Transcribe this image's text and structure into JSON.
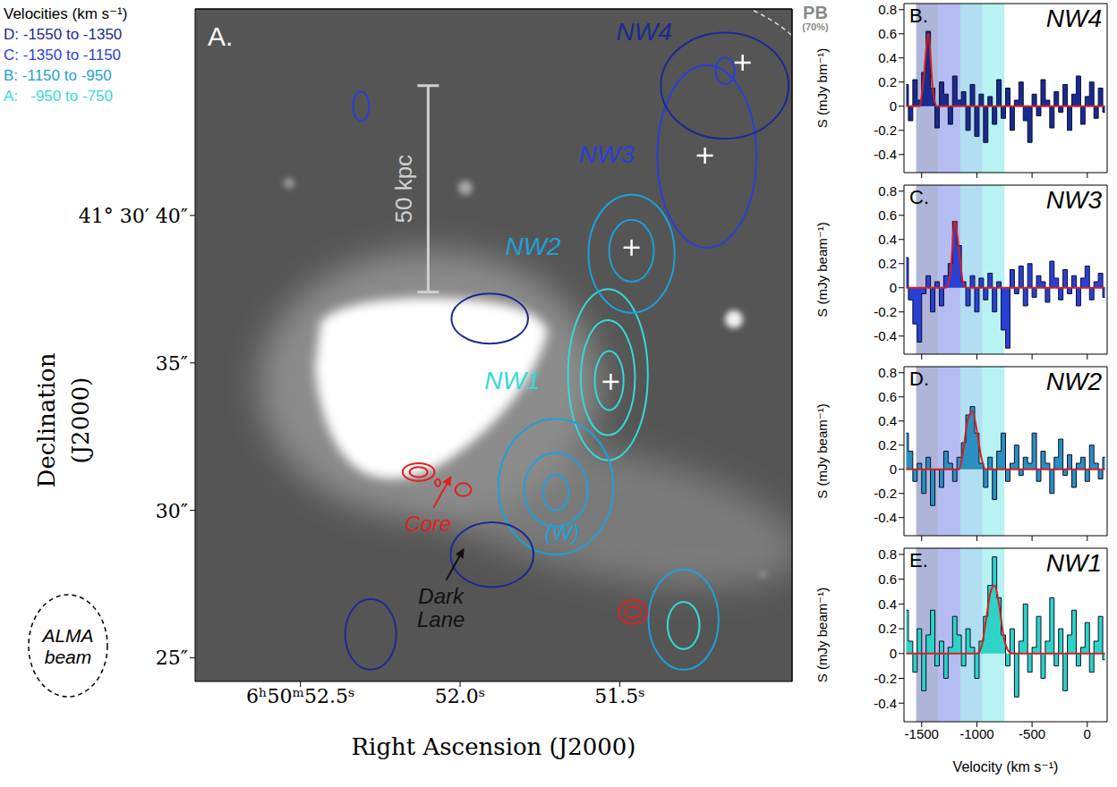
{
  "chart_data": [
    {
      "type": "scatter",
      "panel": "A.",
      "xlabel": "Right Ascension (J2000)",
      "ylabel": "Declination (J2000)",
      "xlim": [
        52.83,
        50.96
      ],
      "ylim": [
        24.2,
        47.0
      ],
      "xticks": [
        {
          "value": 52.5,
          "label": "6ʰ50ᵐ52.5ˢ"
        },
        {
          "value": 52.0,
          "label": "52.0ˢ"
        },
        {
          "value": 51.5,
          "label": "51.5ˢ"
        }
      ],
      "yticks": [
        {
          "value": 25,
          "label": "25″"
        },
        {
          "value": 30,
          "label": "30″"
        },
        {
          "value": 35,
          "label": "35″"
        },
        {
          "value": 40,
          "label": "41° 30′ 40″"
        }
      ],
      "legend_title": "Velocities (km s⁻¹)",
      "legend": "upper left",
      "channels": [
        {
          "name": "D",
          "label": "D: -1550 to -1350",
          "range": [
            -1550,
            -1350
          ],
          "color": "#1b2a8f"
        },
        {
          "name": "C",
          "label": "C: -1350 to -1150",
          "range": [
            -1350,
            -1150
          ],
          "color": "#2a3fd6"
        },
        {
          "name": "B",
          "label": "B: -1150 to -950",
          "range": [
            -1150,
            -950
          ],
          "color": "#1fa0d8"
        },
        {
          "name": "A",
          "label": "A:   -950 to -750",
          "range": [
            -950,
            -750
          ],
          "color": "#35d9d9"
        }
      ],
      "marker": "cross",
      "sources": [
        {
          "name": "NW1",
          "x": 51.528,
          "y": 34.36,
          "channel": "A"
        },
        {
          "name": "NW2",
          "x": 51.463,
          "y": 38.91,
          "channel": "B"
        },
        {
          "name": "NW3",
          "x": 51.233,
          "y": 42.03,
          "channel": "C"
        },
        {
          "name": "NW4",
          "x": 51.115,
          "y": 45.18,
          "channel": "D"
        }
      ],
      "contours": [
        {
          "x": 51.537,
          "y": 34.6,
          "rx": 0.125,
          "ry": 2.9,
          "color": "#35d9d9"
        },
        {
          "x": 51.537,
          "y": 34.5,
          "rx": 0.085,
          "ry": 1.95,
          "color": "#35d9d9"
        },
        {
          "x": 51.533,
          "y": 34.4,
          "rx": 0.045,
          "ry": 1.0,
          "color": "#35d9d9"
        },
        {
          "x": 51.7,
          "y": 30.8,
          "rx": 0.18,
          "ry": 2.3,
          "color": "#1fa0d8"
        },
        {
          "x": 51.7,
          "y": 30.7,
          "rx": 0.1,
          "ry": 1.25,
          "color": "#1fa0d8"
        },
        {
          "x": 51.7,
          "y": 30.6,
          "rx": 0.04,
          "ry": 0.6,
          "color": "#1fa0d8"
        },
        {
          "x": 51.463,
          "y": 38.7,
          "rx": 0.135,
          "ry": 2.0,
          "color": "#1fa0d8"
        },
        {
          "x": 51.463,
          "y": 38.8,
          "rx": 0.07,
          "ry": 1.05,
          "color": "#1fa0d8"
        },
        {
          "x": 51.3,
          "y": 26.3,
          "rx": 0.11,
          "ry": 1.7,
          "color": "#1fa0d8"
        },
        {
          "x": 51.3,
          "y": 26.1,
          "rx": 0.05,
          "ry": 0.8,
          "color": "#35d9d9"
        },
        {
          "x": 51.227,
          "y": 42.0,
          "rx": 0.155,
          "ry": 3.1,
          "color": "#2a3fd6"
        },
        {
          "x": 51.17,
          "y": 44.9,
          "rx": 0.03,
          "ry": 0.45,
          "color": "#2a3fd6"
        },
        {
          "x": 52.31,
          "y": 43.7,
          "rx": 0.025,
          "ry": 0.5,
          "color": "#2a3fd6"
        },
        {
          "x": 51.171,
          "y": 44.4,
          "rx": 0.2,
          "ry": 1.8,
          "color": "#1b2a8f"
        },
        {
          "x": 51.907,
          "y": 36.5,
          "rx": 0.12,
          "ry": 0.85,
          "color": "#1b2a8f"
        },
        {
          "x": 51.9,
          "y": 28.5,
          "rx": 0.13,
          "ry": 1.1,
          "color": "#1b2a8f"
        },
        {
          "x": 52.28,
          "y": 25.8,
          "rx": 0.08,
          "ry": 1.2,
          "color": "#1b2a8f"
        },
        {
          "x": 52.13,
          "y": 31.3,
          "rx": 0.05,
          "ry": 0.3,
          "color": "#e02020"
        },
        {
          "x": 52.13,
          "y": 31.3,
          "rx": 0.028,
          "ry": 0.17,
          "color": "#e02020"
        },
        {
          "x": 51.99,
          "y": 30.7,
          "rx": 0.025,
          "ry": 0.22,
          "color": "#e02020"
        },
        {
          "x": 52.07,
          "y": 30.94,
          "rx": 0.008,
          "ry": 0.12,
          "color": "#e02020"
        },
        {
          "x": 51.458,
          "y": 26.55,
          "rx": 0.045,
          "ry": 0.4,
          "color": "#e02020"
        },
        {
          "x": 51.458,
          "y": 26.55,
          "rx": 0.025,
          "ry": 0.2,
          "color": "#e02020"
        }
      ],
      "annotations": [
        {
          "text": "(W)",
          "x": 51.68,
          "y": 29.0,
          "color": "#1fa0d8"
        },
        {
          "text": "Core",
          "x": 52.1,
          "y": 29.3,
          "color": "#e02020",
          "marker": "arrow"
        },
        {
          "text": "Dark Lane",
          "x": 52.06,
          "y": 26.85,
          "color": "#111111",
          "marker": "arrow"
        }
      ],
      "scale_bar": {
        "label": "50 kpc",
        "x": 52.1,
        "y": [
          37.4,
          44.4
        ]
      },
      "beam_label": "ALMA beam",
      "pb_label": [
        "PB",
        "(70%)"
      ]
    },
    {
      "type": "line",
      "panel": "B.",
      "title": "NW4",
      "ylabel": "S (mJy bm⁻¹)",
      "tick_labels": "y",
      "xlim": [
        -1660,
        180
      ],
      "ylim": [
        -0.55,
        0.85
      ],
      "xticks": [
        -1500,
        -1000,
        -500,
        0
      ],
      "yticks": [
        -0.4,
        -0.2,
        0,
        0.2,
        0.4,
        0.6,
        0.8
      ],
      "x": [
        -1640,
        -1600,
        -1560,
        -1520,
        -1480,
        -1440,
        -1400,
        -1360,
        -1320,
        -1280,
        -1240,
        -1200,
        -1160,
        -1120,
        -1080,
        -1040,
        -1000,
        -960,
        -920,
        -880,
        -840,
        -800,
        -760,
        -720,
        -680,
        -640,
        -600,
        -560,
        -520,
        -480,
        -440,
        -400,
        -360,
        -320,
        -280,
        -240,
        -200,
        -160,
        -120,
        -80,
        -40,
        0,
        40,
        80,
        120,
        160
      ],
      "series": [
        {
          "type": "step",
          "color": "#1b2a8f",
          "values": [
            0.18,
            -0.12,
            0.22,
            0.05,
            0.28,
            0.62,
            0.15,
            -0.18,
            0.2,
            0.1,
            -0.15,
            0.25,
            0.05,
            0.12,
            -0.2,
            0.18,
            -0.25,
            0.1,
            -0.3,
            0.08,
            -0.15,
            0.22,
            -0.1,
            0.15,
            -0.2,
            0.05,
            0.2,
            -0.12,
            -0.3,
            0.1,
            -0.08,
            0.22,
            0.05,
            -0.18,
            0.12,
            -0.05,
            0.18,
            -0.2,
            0.1,
            0.25,
            -0.15,
            0.08,
            0.2,
            -0.1,
            0.15,
            -0.05
          ]
        },
        {
          "type": "line",
          "color": "#d42020",
          "values": [
            0,
            0,
            0,
            0,
            0.25,
            0.6,
            0.15,
            0,
            0,
            0,
            0,
            0,
            0,
            0,
            0,
            0,
            0,
            0,
            0,
            0,
            0,
            0,
            0,
            0,
            0,
            0,
            0,
            0,
            0,
            0,
            0,
            0,
            0,
            0,
            0,
            0,
            0,
            0,
            0,
            0,
            0,
            0,
            0,
            0,
            0,
            0
          ]
        }
      ]
    },
    {
      "type": "line",
      "panel": "C.",
      "title": "NW3",
      "ylabel": "S (mJy beam⁻¹)",
      "tick_labels": "y",
      "xlim": [
        -1660,
        180
      ],
      "ylim": [
        -0.55,
        0.85
      ],
      "xticks": [
        -1500,
        -1000,
        -500,
        0
      ],
      "yticks": [
        -0.4,
        -0.2,
        0,
        0.2,
        0.4,
        0.6,
        0.8
      ],
      "x": [
        -1640,
        -1600,
        -1560,
        -1520,
        -1480,
        -1440,
        -1400,
        -1360,
        -1320,
        -1280,
        -1240,
        -1200,
        -1160,
        -1120,
        -1080,
        -1040,
        -1000,
        -960,
        -920,
        -880,
        -840,
        -800,
        -760,
        -720,
        -680,
        -640,
        -600,
        -560,
        -520,
        -480,
        -440,
        -400,
        -360,
        -320,
        -280,
        -240,
        -200,
        -160,
        -120,
        -80,
        -40,
        0,
        40,
        80,
        120,
        160
      ],
      "series": [
        {
          "type": "step",
          "color": "#2a3fd6",
          "values": [
            0.25,
            -0.1,
            -0.3,
            -0.45,
            -0.05,
            0.1,
            -0.2,
            0.05,
            -0.15,
            0.1,
            0.2,
            0.55,
            0.35,
            0.05,
            -0.15,
            0.1,
            -0.2,
            0.08,
            -0.1,
            0.12,
            -0.2,
            0.05,
            -0.35,
            -0.5,
            0.15,
            -0.05,
            0.18,
            -0.15,
            0.2,
            -0.08,
            0.1,
            0.05,
            -0.12,
            0.22,
            0.08,
            -0.1,
            0.15,
            -0.05,
            0.1,
            -0.15,
            0.08,
            0.18,
            -0.1,
            0.05,
            0.12,
            -0.08
          ]
        },
        {
          "type": "line",
          "color": "#d42020",
          "values": [
            0,
            0,
            0,
            0,
            0,
            0,
            0,
            0,
            0,
            0,
            0.12,
            0.55,
            0.3,
            0.02,
            0,
            0,
            0,
            0,
            0,
            0,
            0,
            0,
            0,
            0,
            0,
            0,
            0,
            0,
            0,
            0,
            0,
            0,
            0,
            0,
            0,
            0,
            0,
            0,
            0,
            0,
            0,
            0,
            0,
            0,
            0,
            0
          ]
        }
      ]
    },
    {
      "type": "line",
      "panel": "D.",
      "title": "NW2",
      "ylabel": "S (mJy beam⁻¹)",
      "tick_labels": "y",
      "xlim": [
        -1660,
        180
      ],
      "ylim": [
        -0.55,
        0.85
      ],
      "xticks": [
        -1500,
        -1000,
        -500,
        0
      ],
      "yticks": [
        -0.4,
        -0.2,
        0,
        0.2,
        0.4,
        0.6,
        0.8
      ],
      "x": [
        -1640,
        -1600,
        -1560,
        -1520,
        -1480,
        -1440,
        -1400,
        -1360,
        -1320,
        -1280,
        -1240,
        -1200,
        -1160,
        -1120,
        -1080,
        -1040,
        -1000,
        -960,
        -920,
        -880,
        -840,
        -800,
        -760,
        -720,
        -680,
        -640,
        -600,
        -560,
        -520,
        -480,
        -440,
        -400,
        -360,
        -320,
        -280,
        -240,
        -200,
        -160,
        -120,
        -80,
        -40,
        0,
        40,
        80,
        120,
        160
      ],
      "series": [
        {
          "type": "step",
          "color": "#2b8fbf",
          "values": [
            0.3,
            0.15,
            -0.1,
            0.05,
            -0.2,
            0.1,
            -0.3,
            0,
            -0.15,
            0.15,
            0.05,
            -0.1,
            0.1,
            0.22,
            0.45,
            0.52,
            0.3,
            0.05,
            -0.15,
            0.1,
            -0.25,
            0.15,
            0.3,
            -0.1,
            0.05,
            0.2,
            -0.05,
            0.1,
            0.05,
            0.3,
            -0.1,
            0.15,
            0.05,
            -0.2,
            0.1,
            0.25,
            -0.05,
            0.12,
            -0.15,
            0.05,
            0.1,
            -0.1,
            0.2,
            0.05,
            -0.08,
            0.1
          ]
        },
        {
          "type": "line",
          "color": "#d42020",
          "values": [
            0,
            0,
            0,
            0,
            0,
            0,
            0,
            0,
            0,
            0,
            0,
            0,
            0,
            0.18,
            0.42,
            0.48,
            0.32,
            0.1,
            0,
            0,
            0,
            0,
            0,
            0,
            0,
            0,
            0,
            0,
            0,
            0,
            0,
            0,
            0,
            0,
            0,
            0,
            0,
            0,
            0,
            0,
            0,
            0,
            0,
            0,
            0,
            0
          ]
        }
      ]
    },
    {
      "type": "line",
      "panel": "E.",
      "title": "NW1",
      "ylabel": "S (mJy beam⁻¹)",
      "xlabel": "Velocity (km s⁻¹)",
      "xlim": [
        -1660,
        180
      ],
      "ylim": [
        -0.55,
        0.85
      ],
      "xticks": [
        -1500,
        -1000,
        -500,
        0
      ],
      "yticks": [
        -0.4,
        -0.2,
        0,
        0.2,
        0.4,
        0.6,
        0.8
      ],
      "x": [
        -1640,
        -1600,
        -1560,
        -1520,
        -1480,
        -1440,
        -1400,
        -1360,
        -1320,
        -1280,
        -1240,
        -1200,
        -1160,
        -1120,
        -1080,
        -1040,
        -1000,
        -960,
        -920,
        -880,
        -840,
        -800,
        -760,
        -720,
        -680,
        -640,
        -600,
        -560,
        -520,
        -480,
        -440,
        -400,
        -360,
        -320,
        -280,
        -240,
        -200,
        -160,
        -120,
        -80,
        -40,
        0,
        40,
        80,
        120,
        160
      ],
      "series": [
        {
          "type": "step",
          "color": "#2ed3c6",
          "values": [
            0.35,
            0.1,
            -0.15,
            0.2,
            -0.3,
            0.15,
            0.35,
            -0.1,
            0.1,
            -0.2,
            0.05,
            0.3,
            0.15,
            -0.1,
            0.2,
            0.05,
            -0.2,
            0.1,
            0.3,
            0.55,
            0.78,
            0.45,
            0.15,
            -0.1,
            0.2,
            -0.35,
            0.1,
            0.4,
            -0.15,
            0.05,
            0.3,
            -0.2,
            0.1,
            0.45,
            -0.1,
            0.2,
            -0.3,
            0.15,
            0.35,
            -0.1,
            0.05,
            0.25,
            -0.15,
            0.1,
            0.3,
            -0.05
          ]
        },
        {
          "type": "line",
          "color": "#d42020",
          "values": [
            0,
            0,
            0,
            0,
            0,
            0,
            0,
            0,
            0,
            0,
            0,
            0,
            0,
            0,
            0,
            0,
            0,
            0.05,
            0.25,
            0.48,
            0.55,
            0.4,
            0.15,
            0.03,
            0,
            0,
            0,
            0,
            0,
            0,
            0,
            0,
            0,
            0,
            0,
            0,
            0,
            0,
            0,
            0,
            0,
            0,
            0,
            0,
            0,
            0
          ]
        }
      ]
    }
  ]
}
